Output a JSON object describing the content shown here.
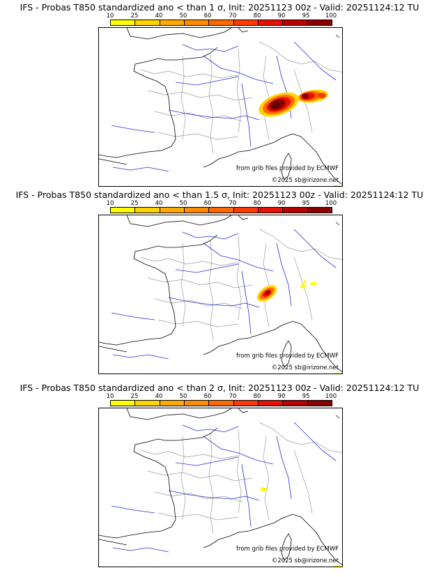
{
  "colorbar": {
    "labels": [
      "10",
      "25",
      "40",
      "50",
      "60",
      "70",
      "80",
      "90",
      "95",
      "100"
    ],
    "colors": [
      "#ffff00",
      "#ffd400",
      "#ffaa00",
      "#ff8c00",
      "#ff6a00",
      "#ff3a00",
      "#e81000",
      "#b80000",
      "#8a0000",
      "#5a0000"
    ]
  },
  "panels": [
    {
      "title": "IFS - Probas T850  standardized ano < than 1 σ, Init: 20251123 00z - Valid: 20251124:12 TU",
      "credit_grib": "from grib files provided by ECMWF",
      "credit_copy": "©2025 sb@irizone.net",
      "threshold_sigma": 1
    },
    {
      "title": "IFS - Probas T850  standardized ano < than 1.5 σ, Init: 20251123 00z - Valid: 20251124:12 TU",
      "credit_grib": "from grib files provided by ECMWF",
      "credit_copy": "©2025 sb@irizone.net",
      "threshold_sigma": 1.5
    },
    {
      "title": "IFS - Probas T850  standardized ano < than 2 σ, Init: 20251123 00z - Valid: 20251124:12 TU",
      "credit_grib": "from grib files provided by ECMWF",
      "credit_copy": "©2025 sb@irizone.net",
      "threshold_sigma": 2
    }
  ],
  "map_colors": {
    "coast": "#000000",
    "rivers": "#2b2bd6",
    "borders": "#9a9a9a"
  }
}
